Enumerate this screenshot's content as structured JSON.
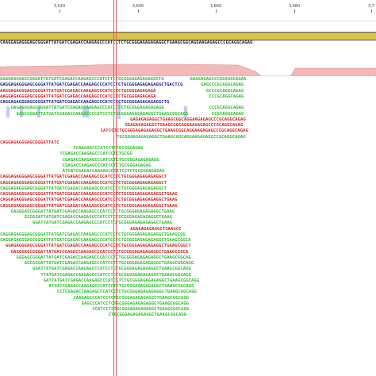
{
  "ruler": {
    "ticks": [
      "3,620",
      "3,640",
      "3,660",
      "3,680",
      "3,7"
    ]
  },
  "reference": {
    "sequence": "CAAGGAGAGGGAGCGGGATTATGATCGAGACCAAGAGCCCATCCTCTGCGGGAGAGAGAGGCTGAAGCGGCAGGAAGAGAGCCCGCAGGCAGAG"
  },
  "colors": {
    "forward": "#2bbd2b",
    "reverse": "#d62020",
    "mismatch_g": "#d4a000",
    "mismatch_c": "#2030d0",
    "paired": "#1a1a8a",
    "coverage": "#f4b8b8",
    "annotation": "#d7c34a",
    "cursor": "#e06060"
  },
  "reads": [
    {
      "col": 0,
      "row": 0,
      "strand": "f",
      "seq": "GGAGAGGGAGCGGGATTATGATCGAGACCAAGAGCCCATCCTCTGCGGGAGAGAGAGGCTG"
    },
    {
      "col": 70,
      "row": 0,
      "strand": "f",
      "seq": "GAAGAGAGCCCGCAGGCAGAG"
    },
    {
      "col": 0,
      "row": 1,
      "strand": "p",
      "seq": "GAGGAGAGGGAGCGGGATTATGATCGAGACCAAGAGCCCATCCTCTGCGGGAGAGAGAGGCTGACTCG"
    },
    {
      "col": 74,
      "row": 1,
      "strand": "f",
      "seq": "GAGCCCGCAGGCAGAG"
    },
    {
      "col": 0,
      "row": 2,
      "strand": "r",
      "seq": "AAGGAGAGGGAGCGGGATTATGATCGAGACCAAGAGCCCATCCTCTGCGGGAGAGAGA"
    },
    {
      "col": 76,
      "row": 2,
      "strand": "f",
      "seq": "GCCCGCAGGCAGAG"
    },
    {
      "col": 0,
      "row": 3,
      "strand": "r",
      "seq": "AAGGAGAGGGAGCGGGATTATGATCGAGACCAAGAGCCCATCCTCTGCGGGAGAGAGA"
    },
    {
      "col": 77,
      "row": 3,
      "strand": "f",
      "seq": "CCCGCAGGCAGAG"
    },
    {
      "col": 0,
      "row": 4,
      "strand": "p",
      "seq": "CAGGAGAGGGAGCGGGATTATGATCGAGACCAAGAGCCCATCCTCTGCGGGAGAGAGAGGCTG"
    },
    {
      "col": 4,
      "row": 5,
      "strand": "f",
      "seq": "GAGAGGGAGCGGGATTATGATCGAGACCAAGAGCCCATCCTCTGCGGGAGAGAGAGG"
    },
    {
      "col": 77,
      "row": 5,
      "strand": "f",
      "seq": "CCCGCAGGCAGAG"
    },
    {
      "col": 6,
      "row": 6,
      "strand": "f",
      "seq": "GAGCGGGATTATGATCGAGACCAAGAGCCCATCCTCTGCGGGAGAGAGAGGCTGAAGCGGCAGG"
    },
    {
      "col": 78,
      "row": 6,
      "strand": "f",
      "seq": "CCGCAGGCAGAG"
    },
    {
      "col": 48,
      "row": 7,
      "strand": "r",
      "seq": "GAGAGAGAGGCTGAAGCGGCAGGAAGAGAGCCCGCAGGCAGAG"
    },
    {
      "col": 46,
      "row": 8,
      "strand": "r",
      "seq": "GGAGAGAGAGGCTGAAGCGGCAGGAAGAGAGCCCGCAGGCAGAG"
    },
    {
      "col": 37,
      "row": 9,
      "strand": "r",
      "seq": "CATCCTCTGCGGGAGAGAGAGGCTGAAGCGGCAGGAAGAGAGCCCGCAGGCAGAG"
    },
    {
      "col": 43,
      "row": 10,
      "strand": "f",
      "seq": "TGCGGGAGAGAGAGGCTGAAGCGGCAGGAAGAGAGCCCGCAGGCAGAG"
    },
    {
      "col": 0,
      "row": 11,
      "strand": "r",
      "seq": "CAGGAGAGGGAGCGGGATTATC"
    },
    {
      "col": 27,
      "row": 12,
      "strand": "f",
      "seq": "CCAAGAGCCCATCCTCTGCGGGAGAG"
    },
    {
      "col": 22,
      "row": 13,
      "strand": "f",
      "seq": "TCGAGACCAAGAGCCCATCCTCTGCGG"
    },
    {
      "col": 23,
      "row": 14,
      "strand": "f",
      "seq": "CGAGACCAAGAGCCCATCCTCTGCGGGAGAGAGAGG"
    },
    {
      "col": 23,
      "row": 15,
      "strand": "f",
      "seq": "CGAGACCAAGAGCCCATCCTCTGCGGGAGAGAG"
    },
    {
      "col": 23,
      "row": 16,
      "strand": "f",
      "seq": "ATGATCGAGACCAAGAGCCCATCCTCTGCGGGAGAGAG"
    },
    {
      "col": 0,
      "row": 17,
      "strand": "r",
      "seq": "CAGGAGAGGGAGCGGGATTATGATCGAGACCAAGAGCCCATCCTCTGCGGGAGAGAGAGGCT"
    },
    {
      "col": 0,
      "row": 18,
      "strand": "r",
      "seq": "CAGGAGAGGGAGCGGGATTATGATCGAGACCAAGAGCCCATCCTCTGCGGGAGAGAGAGGCT"
    },
    {
      "col": 0,
      "row": 19,
      "strand": "f",
      "seq": "CAGGAGAGGGAGCGGGATTATGATCGAGACCAAGAGCCCATCCTCTGCGGGAGAGAGAGGCT"
    },
    {
      "col": 0,
      "row": 20,
      "strand": "r",
      "seq": "CAGGAGAGGGAGCGGGATTATGATCGAGACCAAGAGCCCATCCTCTGCGGGAGAGAGAGGCTGAAG"
    },
    {
      "col": 0,
      "row": 21,
      "strand": "r",
      "seq": "CAGGAGAGGGAGCGGGATTATGATCGAGACCAAGAGCCCATCCTCTGCGGGAGAGAGAGGCTGAAG"
    },
    {
      "col": 0,
      "row": 22,
      "strand": "r",
      "seq": "CAGGAGAGGGAGCGGGATTATGATCGAGACCAAGAGCCCATCCTCTGCGGGAGAGAGAGGCTGAAG"
    },
    {
      "col": 4,
      "row": 23,
      "strand": "f",
      "seq": "GAGGGAGCGGGATTATGATCGAGACCAAGAGCCCATCCTCTGCGGGAGAGAGAGGCTGAAG"
    },
    {
      "col": 9,
      "row": 24,
      "strand": "f",
      "seq": "GCGGGATTATGATCGAGACCAAGAGCCCATCCTCTGCGGGAGAGAGAGGCTGAAG"
    },
    {
      "col": 12,
      "row": 25,
      "strand": "f",
      "seq": "GGATTATGATCGAGACCAAGAGCCCATCCTCTGCGGGAGAGAGAGGCTGAAG"
    },
    {
      "col": 48,
      "row": 26,
      "strand": "r",
      "seq": "AGAGAGAGAGGCTGAAGCC"
    },
    {
      "col": 0,
      "row": 27,
      "strand": "f",
      "seq": "CAGGAGAGGGAGCGGGATTATGATCGAGACCAAGAGCCCATCCTCTGCGGGAGAGAGAGGCTGAAGCGG"
    },
    {
      "col": 0,
      "row": 28,
      "strand": "f",
      "seq": "CAGGAGAGGGAGCGGGATTATGATCGAGACCAAGAGCCCATCCTCTGCGGGAGAGAGAGGCTGAAGCGGCA"
    },
    {
      "col": 2,
      "row": 29,
      "strand": "r",
      "seq": "GGAGAGGGAGCGGGATTATGATCGAGACCAAGAGCCCATCCTCTGCGGGAGAGAGAGGCTGAAGCGGCT"
    },
    {
      "col": 4,
      "row": 30,
      "strand": "r",
      "seq": "GAGGGAGCGGGATTATGATCGAGACCAAGAGCCCATCCTCTGCGGGAGAGAGAGGCTGAAGCGGCA"
    },
    {
      "col": 6,
      "row": 31,
      "strand": "f",
      "seq": "GGGAGCGGGATTATGATCGAGACCAAGAGCCCATCCTCTGCGGGAGAGAGAGGCTGAAGCGGCAG"
    },
    {
      "col": 9,
      "row": 32,
      "strand": "f",
      "seq": "AGCGGGATTATGATCGAGACCAAGAGCCCATCCTCTGCGGGAGAGAGAGGCTGAAGCGGCAGG"
    },
    {
      "col": 12,
      "row": 33,
      "strand": "f",
      "seq": "GGATTATGATCGAGACCAAGAGCCCATCCTCTGCGGGAGAGAGAGGCTGAAGCGGCAGG"
    },
    {
      "col": 15,
      "row": 34,
      "strand": "f",
      "seq": "TTATGATCGAGACCAAGAGCCCATCCTCTGCGGGAGAGAGAGGCTGAAGCGGCAGG"
    },
    {
      "col": 16,
      "row": 35,
      "strand": "f",
      "seq": "GATTATGATCGAGACCAAGAGCCCATCCTCTGCGGGAGAGAGAGGCTGAAGCGGCAGG"
    },
    {
      "col": 18,
      "row": 36,
      "strand": "f",
      "seq": "ATGATCGAGACCAAGAGCCCATCCTCTGCGGGAGAGAGAGGCTGAAGCGGCAGG"
    },
    {
      "col": 21,
      "row": 37,
      "strand": "f",
      "seq": "CCTCGAGACCAAGAGCCCATCCTCTGCGGGAGAGAGAGGCTGAAGCGGCAGG"
    },
    {
      "col": 27,
      "row": 38,
      "strand": "f",
      "seq": "CAAGAGCCCATCCTCTGCGGGAGAGAGAGGCTGAAGCGGCAGG"
    },
    {
      "col": 30,
      "row": 39,
      "strand": "f",
      "seq": "GAGCCCATCCTCTGCGGGAGAGAGAGGCTGAAGCGGCAGG"
    },
    {
      "col": 34,
      "row": 40,
      "strand": "f",
      "seq": "CCATCCTCTGCGGGAGAGAGAGGCTGAAGCGGCAGG"
    },
    {
      "col": 40,
      "row": 41,
      "strand": "f",
      "seq": "CTGCGGGAGAGAGAGGCTGAAGCGGCAGG"
    }
  ]
}
